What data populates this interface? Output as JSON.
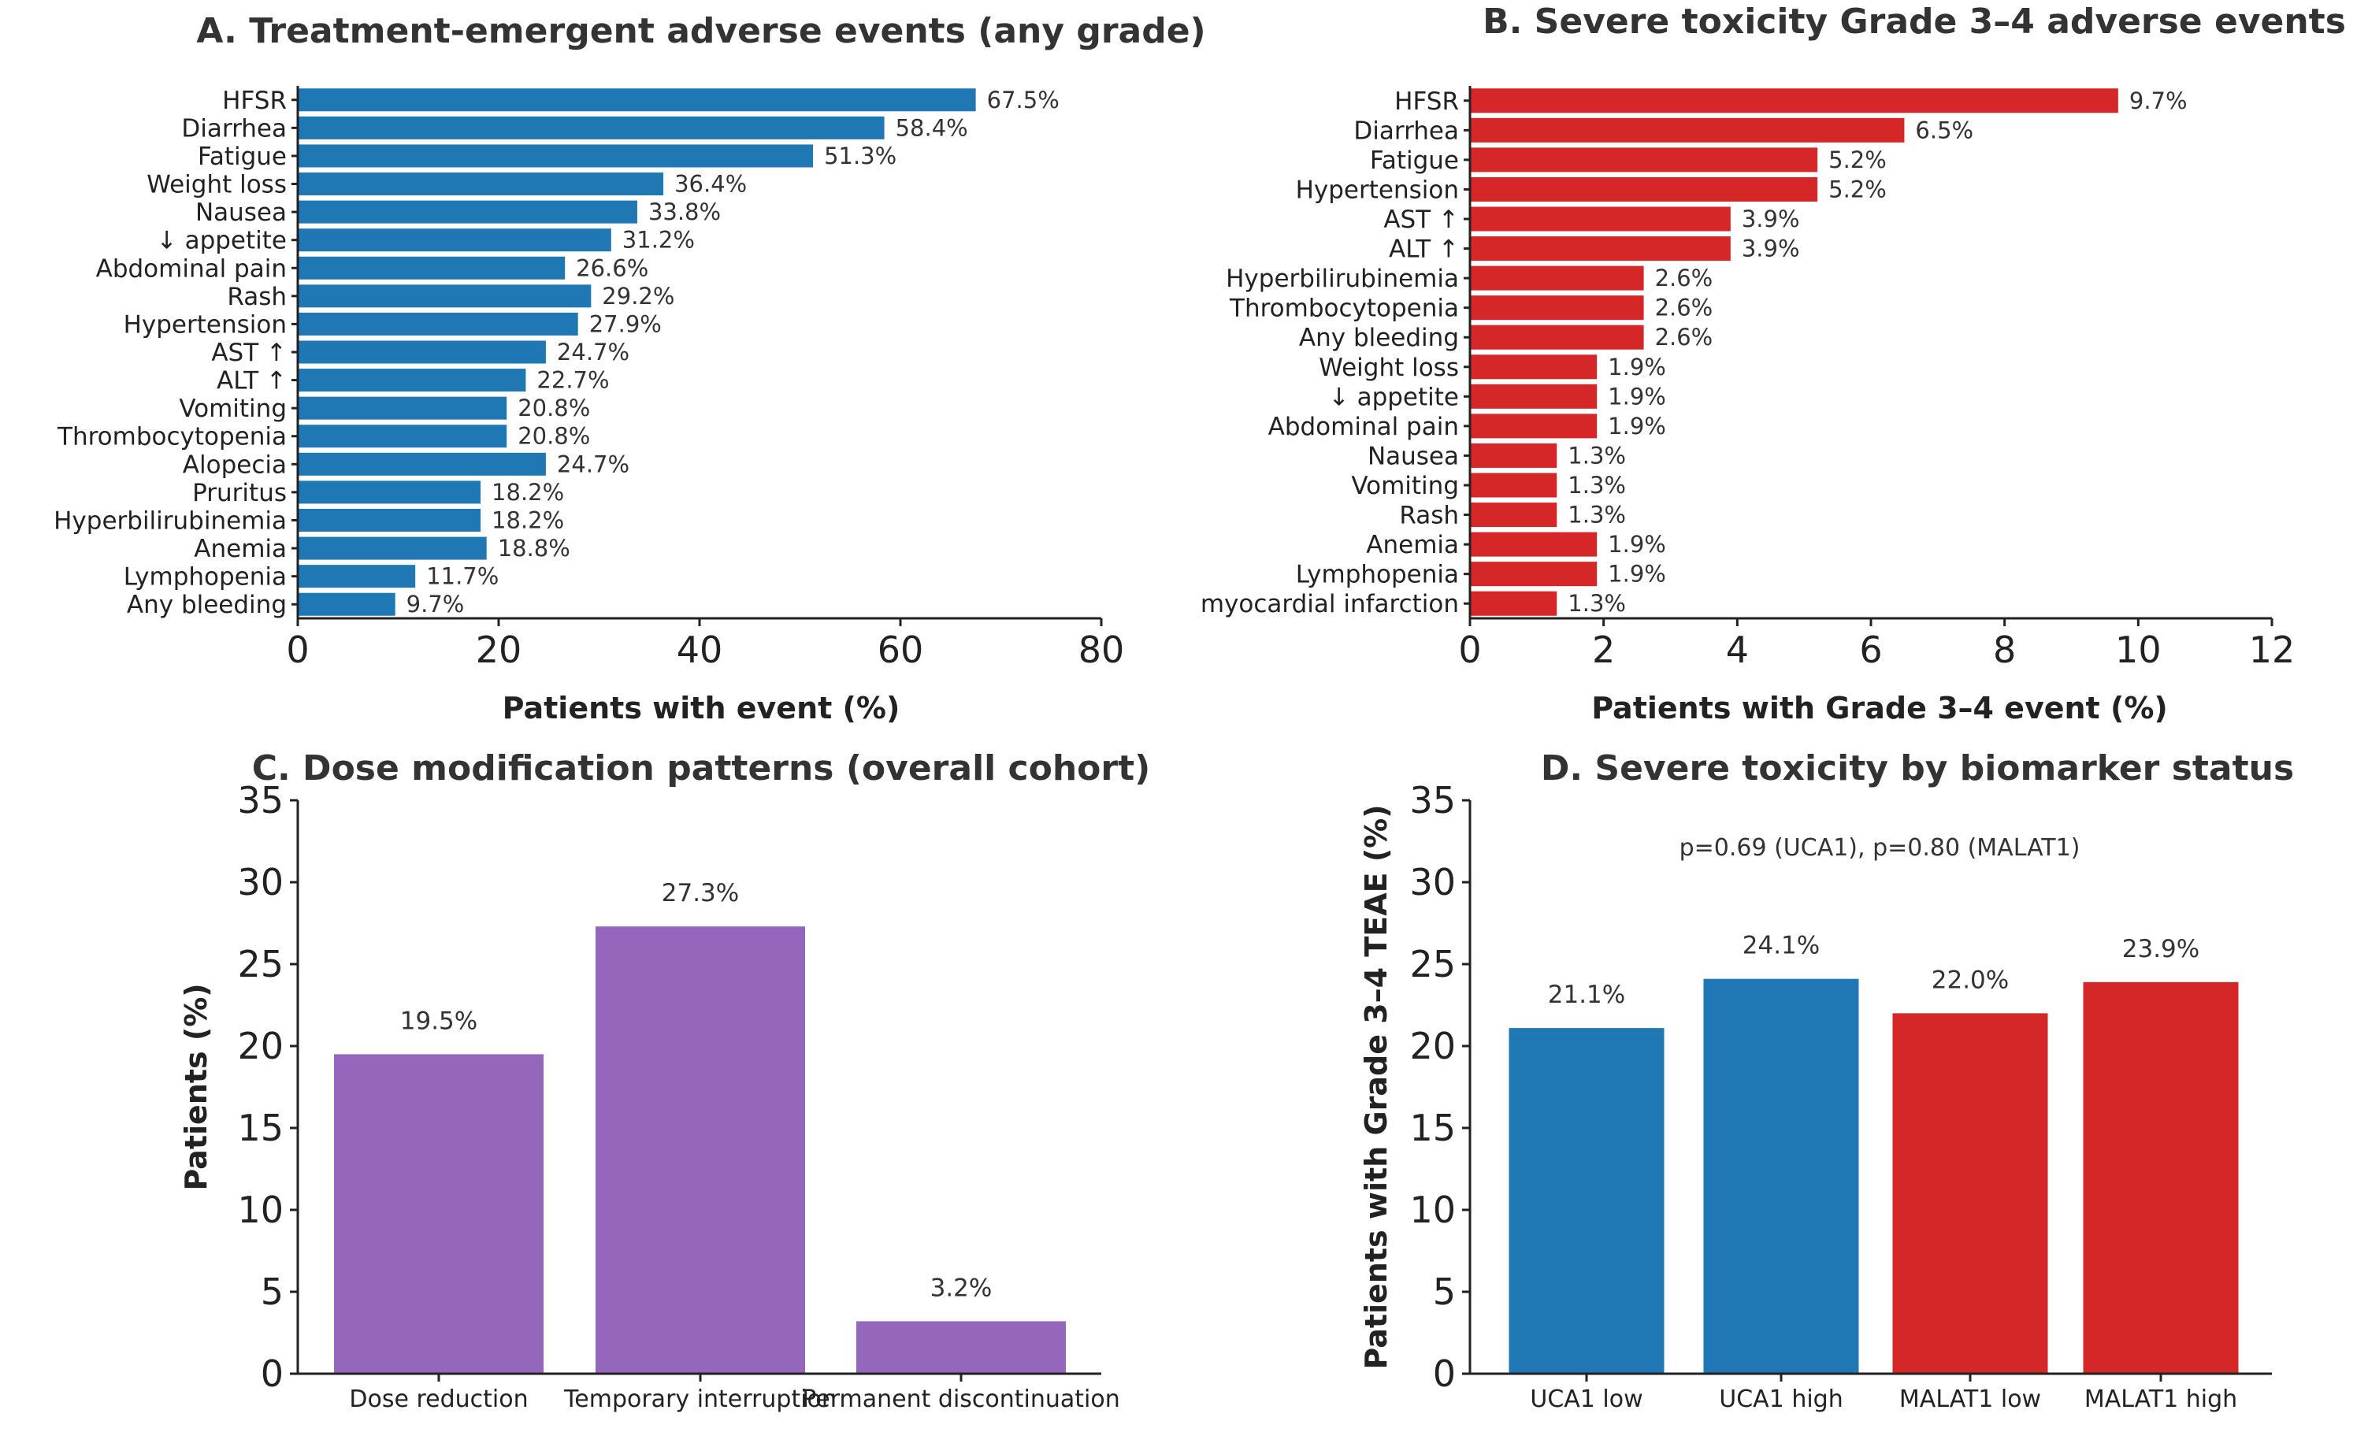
{
  "colors": {
    "blue": "#1f77b4",
    "red": "#d62728",
    "purple": "#9467bd"
  },
  "chart_data": [
    {
      "type": "bar",
      "orientation": "horizontal",
      "title": "A. Treatment-emergent adverse events (any grade)",
      "xlabel": "Patients with event (%)",
      "ylabel": "",
      "xlim": [
        0,
        80
      ],
      "xticks": [
        "0",
        "20",
        "40",
        "60",
        "80"
      ],
      "color": "#1f77b4",
      "categories": [
        "HFSR",
        "Diarrhea",
        "Fatigue",
        "Weight loss",
        "Nausea",
        "↓ appetite",
        "Abdominal pain",
        "Rash",
        "Hypertension",
        "AST ↑",
        "ALT ↑",
        "Vomiting",
        "Thrombocytopenia",
        "Alopecia",
        "Pruritus",
        "Hyperbilirubinemia",
        "Anemia",
        "Lymphopenia",
        "Any bleeding"
      ],
      "values": [
        67.5,
        58.4,
        51.3,
        36.4,
        33.8,
        31.2,
        26.6,
        29.2,
        27.9,
        24.7,
        22.7,
        20.8,
        20.8,
        24.7,
        18.2,
        18.2,
        18.8,
        11.7,
        9.7
      ],
      "labels": [
        "67.5%",
        "58.4%",
        "51.3%",
        "36.4%",
        "33.8%",
        "31.2%",
        "26.6%",
        "29.2%",
        "27.9%",
        "24.7%",
        "22.7%",
        "20.8%",
        "20.8%",
        "24.7%",
        "18.2%",
        "18.2%",
        "18.8%",
        "11.7%",
        "9.7%"
      ]
    },
    {
      "type": "bar",
      "orientation": "horizontal",
      "title": "B.  Severe toxicity Grade 3–4 adverse events",
      "xlabel": "Patients with Grade 3–4 event (%)",
      "ylabel": "",
      "xlim": [
        0,
        12
      ],
      "xticks": [
        "0",
        "2",
        "4",
        "6",
        "8",
        "10",
        "12"
      ],
      "color": "#d62728",
      "categories": [
        "HFSR",
        "Diarrhea",
        "Fatigue",
        "Hypertension",
        "AST ↑",
        "ALT ↑",
        "Hyperbilirubinemia",
        "Thrombocytopenia",
        "Any bleeding",
        "Weight loss",
        "↓ appetite",
        "Abdominal pain",
        "Nausea",
        "Vomiting",
        "Rash",
        "Anemia",
        "Lymphopenia",
        "myocardial infarction"
      ],
      "values": [
        9.7,
        6.5,
        5.2,
        5.2,
        3.9,
        3.9,
        2.6,
        2.6,
        2.6,
        1.9,
        1.9,
        1.9,
        1.3,
        1.3,
        1.3,
        1.9,
        1.9,
        1.3
      ],
      "labels": [
        "9.7%",
        "6.5%",
        "5.2%",
        "5.2%",
        "3.9%",
        "3.9%",
        "2.6%",
        "2.6%",
        "2.6%",
        "1.9%",
        "1.9%",
        "1.9%",
        "1.3%",
        "1.3%",
        "1.3%",
        "1.9%",
        "1.9%",
        "1.3%"
      ]
    },
    {
      "type": "bar",
      "orientation": "vertical",
      "title": "C. Dose modification patterns (overall cohort)",
      "xlabel": "",
      "ylabel": "Patients (%)",
      "ylim": [
        0,
        35
      ],
      "yticks": [
        "0",
        "5",
        "10",
        "15",
        "20",
        "25",
        "30",
        "35"
      ],
      "color": "#9467bd",
      "categories": [
        "Dose reduction",
        "Temporary interruption",
        "Permanent discontinuation"
      ],
      "values": [
        19.5,
        27.3,
        3.2
      ],
      "labels": [
        "19.5%",
        "27.3%",
        "3.2%"
      ]
    },
    {
      "type": "bar",
      "orientation": "vertical",
      "title": "D. Severe toxicity by biomarker status",
      "xlabel": "",
      "ylabel": "Patients with Grade 3–4 TEAE (%)",
      "ylim": [
        0,
        35
      ],
      "yticks": [
        "0",
        "5",
        "10",
        "15",
        "20",
        "25",
        "30",
        "35"
      ],
      "annotation": "p=0.69 (UCA1), p=0.80 (MALAT1)",
      "categories": [
        "UCA1 low",
        "UCA1 high",
        "MALAT1 low",
        "MALAT1 high"
      ],
      "values": [
        21.1,
        24.1,
        22.0,
        23.9
      ],
      "bar_colors": [
        "#1f77b4",
        "#1f77b4",
        "#d62728",
        "#d62728"
      ],
      "labels": [
        "21.1%",
        "24.1%",
        "22.0%",
        "23.9%"
      ]
    }
  ]
}
